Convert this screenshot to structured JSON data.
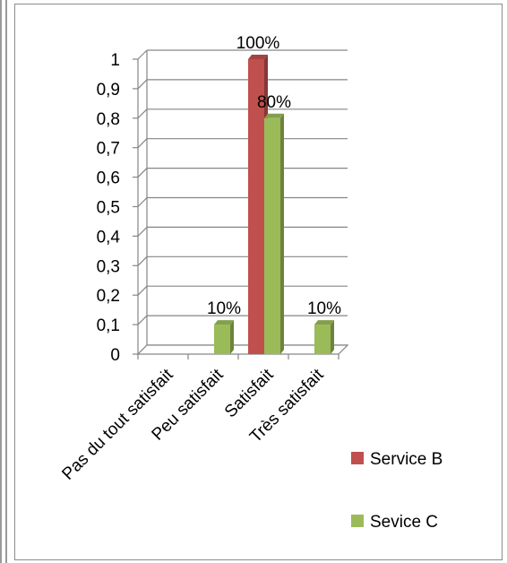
{
  "chart_data": {
    "type": "bar",
    "categories": [
      "Pas du tout satisfait",
      "Peu satisfait",
      "Satisfait",
      "Très satisfait"
    ],
    "series": [
      {
        "name": "Service B",
        "values": [
          0,
          0,
          1.0,
          0
        ],
        "color": "#c0504d",
        "labels": [
          "",
          "",
          "100%",
          ""
        ]
      },
      {
        "name": "Sevice C",
        "values": [
          0,
          0.1,
          0.8,
          0.1
        ],
        "color": "#9bbb59",
        "labels": [
          "",
          "10%",
          "80%",
          "10%"
        ]
      }
    ],
    "y_ticks": [
      "0",
      "0,1",
      "0,2",
      "0,3",
      "0,4",
      "0,5",
      "0,6",
      "0,7",
      "0,8",
      "0,9",
      "1"
    ],
    "ylim": [
      0,
      1
    ],
    "grid": true,
    "legend_position": "right"
  }
}
